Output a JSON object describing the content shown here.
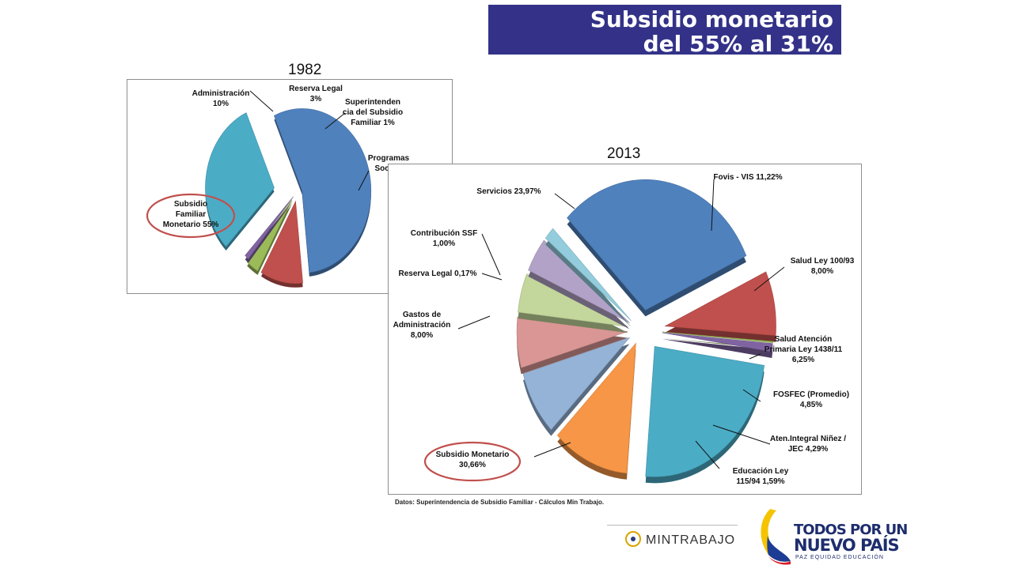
{
  "slide": {
    "title_line1": "Subsidio monetario",
    "title_line2": "del 55% al 31%",
    "source": "Datos: Superintendencia de Subsidio Familiar - Cálculos Min Trabajo."
  },
  "colors": {
    "title_bg": "#333288",
    "highlight_ring": "#c0504d"
  },
  "logos": {
    "mintrabajo": "MINTRABAJO",
    "brand_line1": "TODOS POR UN",
    "brand_line2": "NUEVO PAÍS",
    "brand_line3": "PAZ  EQUIDAD  EDUCACIÓN"
  },
  "chart_data": [
    {
      "type": "pie",
      "title": "1982",
      "highlight": "Subsidio Familiar Monetario",
      "slices": [
        {
          "label": "Subsidio Familiar Monetario",
          "value": 55,
          "label_text": [
            "Subsidio",
            "Familiar",
            "Monetario 55%"
          ],
          "color": "#4f81bd"
        },
        {
          "label": "Administración",
          "value": 10,
          "label_text": [
            "Administración",
            "10%"
          ],
          "color": "#c0504d"
        },
        {
          "label": "Reserva Legal",
          "value": 3,
          "label_text": [
            "Reserva Legal",
            "3%"
          ],
          "color": "#9bbb59"
        },
        {
          "label": "Superintendencia del Subsidio Familiar",
          "value": 1,
          "label_text": [
            "Superintenden",
            "cia del Subsidio",
            "Familiar 1%"
          ],
          "color": "#8064a2"
        },
        {
          "label": "Programas Sociales",
          "value": 31,
          "label_text": [
            "Programas",
            "Sociale"
          ],
          "color": "#4bacc6"
        }
      ]
    },
    {
      "type": "pie",
      "title": "2013",
      "highlight": "Subsidio Monetario",
      "slices": [
        {
          "label": "Subsidio Monetario",
          "value": 30.66,
          "label_text": [
            "Subsidio Monetario",
            "30,66%"
          ],
          "color": "#4f81bd"
        },
        {
          "label": "Gastos de Administración",
          "value": 8.0,
          "label_text": [
            "Gastos de",
            "Administración",
            "8,00%"
          ],
          "color": "#c0504d"
        },
        {
          "label": "Reserva Legal",
          "value": 0.17,
          "label_text": [
            "Reserva Legal 0,17%"
          ],
          "color": "#9bbb59"
        },
        {
          "label": "Contribución SSF",
          "value": 1.0,
          "label_text": [
            "Contribución SSF",
            "1,00%"
          ],
          "color": "#8064a2"
        },
        {
          "label": "Servicios",
          "value": 23.97,
          "label_text": [
            "Servicios 23,97%"
          ],
          "color": "#4bacc6"
        },
        {
          "label": "Fovis - VIS",
          "value": 11.22,
          "label_text": [
            "Fovis - VIS 11,22%"
          ],
          "color": "#f79646"
        },
        {
          "label": "Salud Ley 100/93",
          "value": 8.0,
          "label_text": [
            "Salud Ley 100/93",
            "8,00%"
          ],
          "color": "#95b3d7"
        },
        {
          "label": "Salud Atención Primaria Ley 1438/11",
          "value": 6.25,
          "label_text": [
            "Salud Atención",
            "Primaria Ley 1438/11",
            "6,25%"
          ],
          "color": "#d99694"
        },
        {
          "label": "FOSFEC (Promedio)",
          "value": 4.85,
          "label_text": [
            "FOSFEC (Promedio)",
            "4,85%"
          ],
          "color": "#c3d69b"
        },
        {
          "label": "Aten.Integral Niñez / JEC",
          "value": 4.29,
          "label_text": [
            "Aten.Integral Niñez /",
            "JEC 4,29%"
          ],
          "color": "#b3a2c7"
        },
        {
          "label": "Educación Ley 115/94",
          "value": 1.59,
          "label_text": [
            "Educación Ley",
            "115/94 1,59%"
          ],
          "color": "#93cddd"
        }
      ]
    }
  ]
}
